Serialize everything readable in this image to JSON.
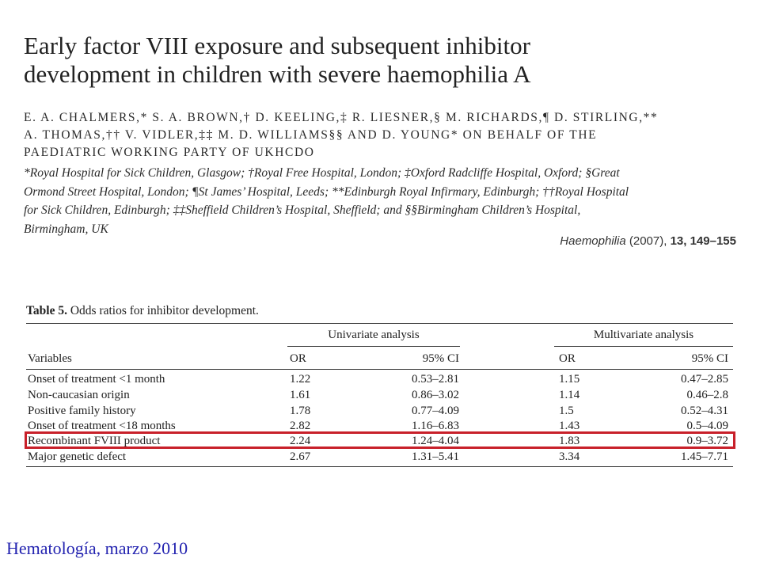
{
  "article": {
    "title_lines": [
      "Early factor VIII exposure and subsequent inhibitor",
      "development in children with severe haemophilia A"
    ],
    "author_lines": [
      "E. A. Chalmers,* S. A. Brown,† D. Keeling,‡ R. Liesner,§ M. Richards,¶ D. Stirling,**",
      "A. Thomas,†† V. Vidler,‡‡ M. D. Williams§§ and D. Young* on behalf of the",
      "Paediatric Working Party of UKHCDO"
    ],
    "affiliation_lines": [
      "*Royal Hospital for Sick Children, Glasgow; †Royal Free Hospital, London; ‡Oxford Radcliffe Hospital, Oxford; §Great",
      "Ormond Street Hospital, London; ¶St James’ Hospital, Leeds; **Edinburgh Royal Infirmary, Edinburgh; ††Royal Hospital",
      "for Sick Children, Edinburgh; ‡‡Sheffield Children’s Hospital, Sheffield; and §§Birmingham Children’s Hospital,",
      "Birmingham, UK"
    ],
    "citation": {
      "journal": "Haemophilia",
      "year": "(2007),",
      "volume": "13,",
      "pages": "149–155"
    }
  },
  "table": {
    "label": "Table 5.",
    "caption": "Odds ratios for inhibitor development.",
    "group_headers": [
      "Univariate analysis",
      "Multivariate analysis"
    ],
    "columns": [
      "Variables",
      "OR",
      "95% CI",
      "OR",
      "95% CI"
    ],
    "rows": [
      [
        "Onset of treatment <1 month",
        "1.22",
        "0.53–2.81",
        "1.15",
        "0.47–2.85"
      ],
      [
        "Non-caucasian origin",
        "1.61",
        "0.86–3.02",
        "1.14",
        "0.46–2.8"
      ],
      [
        "Positive family history",
        "1.78",
        "0.77–4.09",
        "1.5",
        "0.52–4.31"
      ],
      [
        "Onset of treatment <18 months",
        "2.82",
        "1.16–6.83",
        "1.43",
        "0.5–4.09"
      ],
      [
        "Recombinant FVIII product",
        "2.24",
        "1.24–4.04",
        "1.83",
        "0.9–3.72"
      ],
      [
        "Major genetic defect",
        "2.67",
        "1.31–5.41",
        "3.34",
        "1.45–7.71"
      ]
    ],
    "highlighted_row": "Recombinant FVIII product",
    "highlight_color": "#c8202a"
  },
  "footer": {
    "text": "Hematología, marzo 2010",
    "color": "#2323b0"
  }
}
